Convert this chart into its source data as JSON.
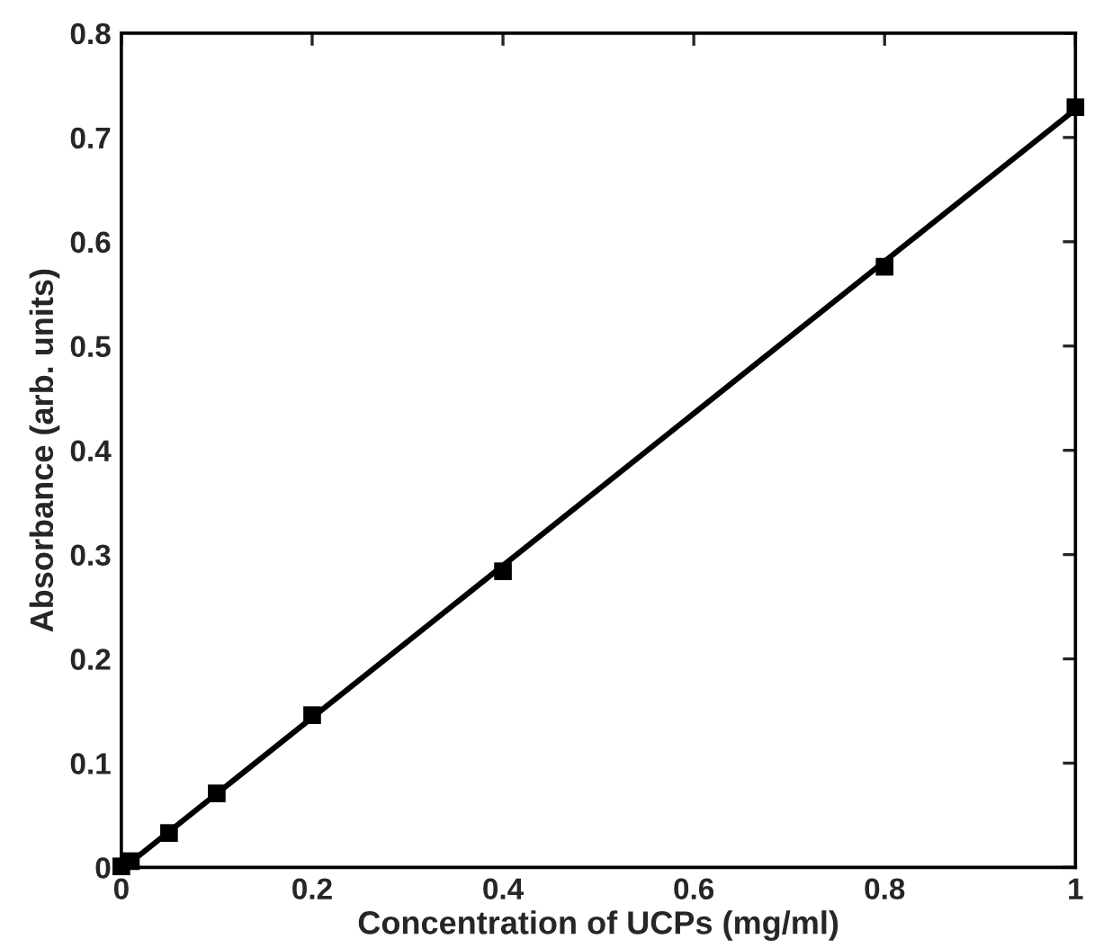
{
  "chart_data": {
    "type": "scatter",
    "xlabel": "Concentration of UCPs (mg/ml)",
    "ylabel": "Absorbance (arb. units)",
    "xlim": [
      0,
      1
    ],
    "ylim": [
      0,
      0.8
    ],
    "xticks": [
      0,
      0.2,
      0.4,
      0.6,
      0.8,
      1
    ],
    "yticks": [
      0,
      0.1,
      0.2,
      0.3,
      0.4,
      0.5,
      0.6,
      0.7,
      0.8
    ],
    "grid": false,
    "legend": false,
    "series": [
      {
        "color": "#000000",
        "marker": "square",
        "x": [
          0,
          0.01,
          0.05,
          0.1,
          0.2,
          0.4,
          0.8,
          1
        ],
        "values": [
          0.001,
          0.006,
          0.033,
          0.071,
          0.146,
          0.284,
          0.576,
          0.729
        ]
      },
      {
        "type": "line",
        "color": "#000000",
        "marker": "none",
        "line_style": "solid",
        "x": [
          0.003,
          1
        ],
        "values": [
          0,
          0.727
        ]
      }
    ]
  }
}
